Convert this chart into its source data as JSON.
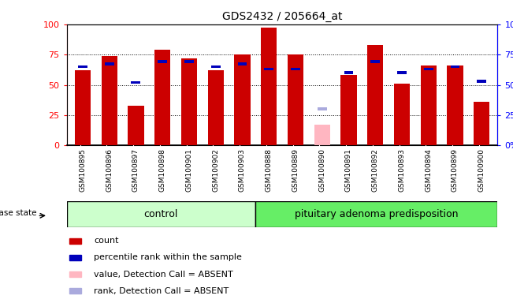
{
  "title": "GDS2432 / 205664_at",
  "samples": [
    "GSM100895",
    "GSM100896",
    "GSM100897",
    "GSM100898",
    "GSM100901",
    "GSM100902",
    "GSM100903",
    "GSM100888",
    "GSM100889",
    "GSM100890",
    "GSM100891",
    "GSM100892",
    "GSM100893",
    "GSM100894",
    "GSM100899",
    "GSM100900"
  ],
  "count_values": [
    62,
    74,
    33,
    79,
    72,
    62,
    75,
    97,
    75,
    null,
    58,
    83,
    51,
    66,
    66,
    36
  ],
  "rank_values": [
    65,
    67,
    52,
    69,
    69,
    65,
    67,
    63,
    63,
    null,
    60,
    69,
    60,
    63,
    65,
    53
  ],
  "absent_count": [
    null,
    null,
    null,
    null,
    null,
    null,
    null,
    null,
    null,
    17,
    null,
    null,
    null,
    null,
    null,
    null
  ],
  "absent_rank": [
    null,
    null,
    null,
    null,
    null,
    null,
    null,
    null,
    null,
    30,
    null,
    null,
    null,
    null,
    null,
    null
  ],
  "n_control": 7,
  "n_disease": 9,
  "control_label": "control",
  "disease_label": "pituitary adenoma predisposition",
  "disease_state_label": "disease state",
  "bar_color_present": "#cc0000",
  "bar_color_absent": "#ffb6c1",
  "rank_color_present": "#0000bb",
  "rank_color_absent": "#aaaadd",
  "label_bg": "#d4d4d4",
  "control_bg": "#ccffcc",
  "disease_bg": "#66ee66",
  "plot_bg": "#ffffff",
  "ylim": [
    0,
    100
  ],
  "yticks": [
    0,
    25,
    50,
    75,
    100
  ],
  "legend_items": [
    {
      "label": "count",
      "color": "#cc0000"
    },
    {
      "label": "percentile rank within the sample",
      "color": "#0000bb"
    },
    {
      "label": "value, Detection Call = ABSENT",
      "color": "#ffb6c1"
    },
    {
      "label": "rank, Detection Call = ABSENT",
      "color": "#aaaadd"
    }
  ]
}
